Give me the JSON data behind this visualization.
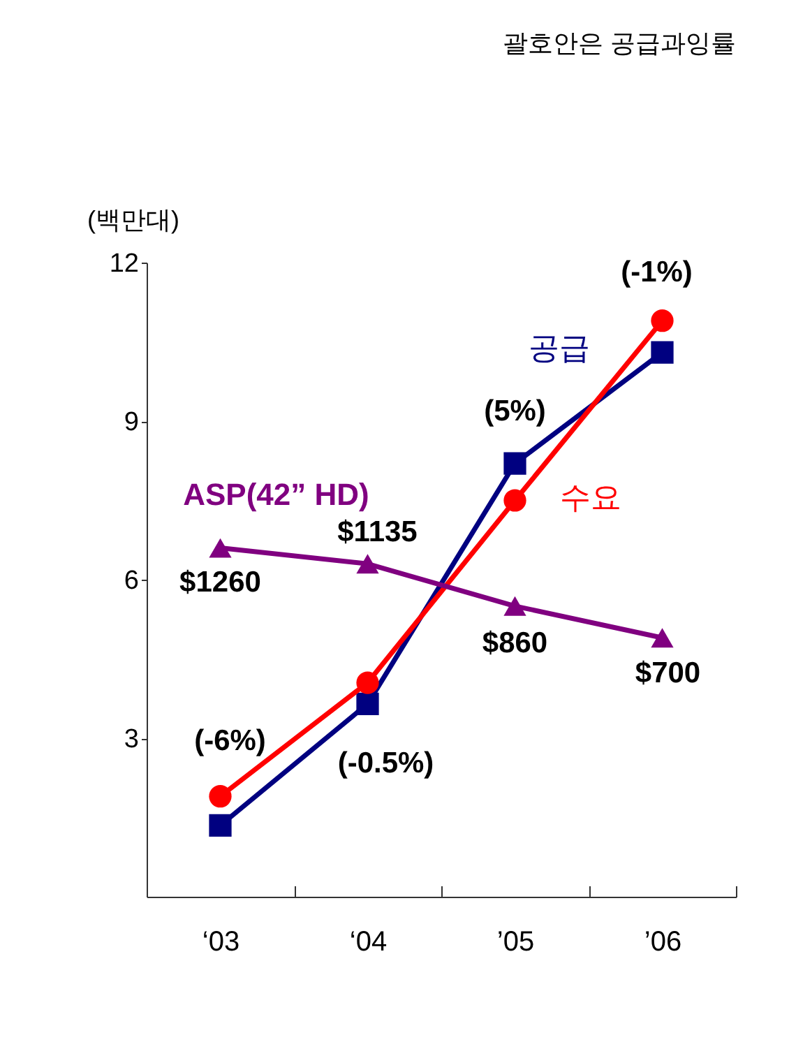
{
  "chart_data": {
    "type": "line",
    "title": "괄호안은 공급과잉률",
    "ylabel": "(백만대)",
    "categories": [
      "‘03",
      "‘04",
      "’05",
      "’06"
    ],
    "series": [
      {
        "name": "공급",
        "color": "#000080",
        "marker": "square",
        "values": [
          1.35,
          3.65,
          8.2,
          10.3
        ]
      },
      {
        "name": "수요",
        "color": "#ff0000",
        "marker": "circle",
        "values": [
          1.9,
          4.05,
          7.5,
          10.9
        ]
      },
      {
        "name": "ASP(42” HD)",
        "color": "#800080",
        "marker": "triangle",
        "values": [
          6.6,
          6.3,
          5.5,
          4.9
        ]
      }
    ],
    "ylim": [
      0,
      12
    ],
    "yticks": [
      3,
      6,
      9,
      12
    ],
    "grid": false,
    "legend": false,
    "annotations": [
      {
        "text": "(-6%)",
        "x": "‘03",
        "y": 1.9
      },
      {
        "text": "(-0.5%)",
        "x": "‘04",
        "y": 3.65
      },
      {
        "text": "(5%)",
        "x": "’05",
        "y": 8.2
      },
      {
        "text": "(-1%)",
        "x": "’06",
        "y": 10.9
      },
      {
        "text": "$1260",
        "x": "‘03",
        "y": 6.6
      },
      {
        "text": "$1135",
        "x": "‘04",
        "y": 6.3
      },
      {
        "text": "$860",
        "x": "’05",
        "y": 5.5
      },
      {
        "text": "$700",
        "x": "’06",
        "y": 4.9
      }
    ]
  }
}
